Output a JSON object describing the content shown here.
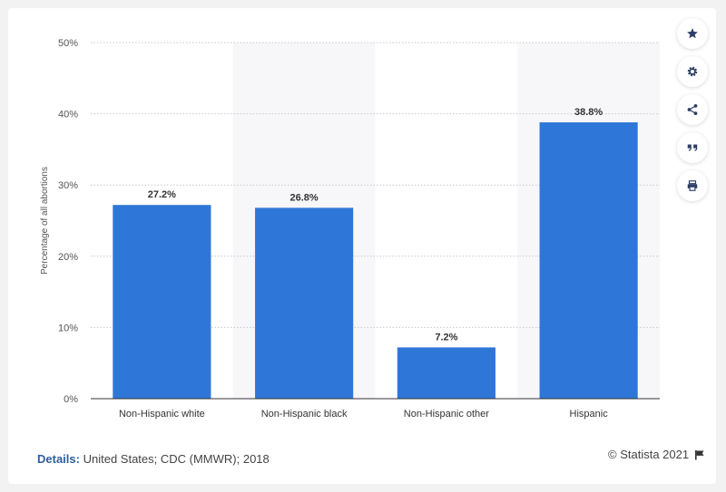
{
  "chart_data": {
    "type": "bar",
    "categories": [
      "Non-Hispanic white",
      "Non-Hispanic black",
      "Non-Hispanic other",
      "Hispanic"
    ],
    "values": [
      27.2,
      26.8,
      7.2,
      38.8
    ],
    "data_labels": [
      "27.2%",
      "26.8%",
      "7.2%",
      "38.8%"
    ],
    "ylabel": "Percentage of all abortions",
    "xlabel": "",
    "ylim": [
      0,
      50
    ],
    "yticks": [
      0,
      10,
      20,
      30,
      40,
      50
    ],
    "ytick_labels": [
      "0%",
      "10%",
      "20%",
      "30%",
      "40%",
      "50%"
    ],
    "grid": true,
    "bar_color": "#2f76d9"
  },
  "footer": {
    "details_label": "Details:",
    "details_text": "United States; CDC (MMWR); 2018",
    "credit": "© Statista 2021"
  },
  "toolbar": {
    "icons": [
      "star-icon",
      "gear-icon",
      "share-icon",
      "quote-icon",
      "print-icon"
    ]
  }
}
